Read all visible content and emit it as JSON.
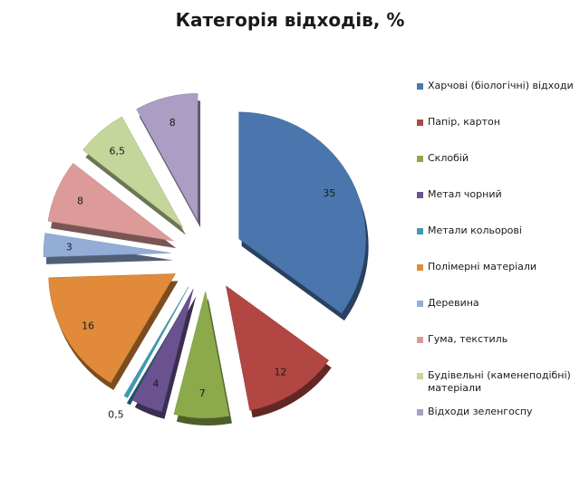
{
  "chart_data": {
    "type": "pie",
    "title": "Категорія відходів, %",
    "categories": [
      "Харчові (біологічні) відходи",
      "Папір, картон",
      "Склобій",
      "Метал чорний",
      "Метали кольорові",
      "Полімерні матеріали",
      "Деревина",
      "Гума, текстиль",
      "Будівельні (каменеподібні) матеріали",
      "Відходи зеленгоспу"
    ],
    "values": [
      35,
      12,
      7,
      4,
      0.5,
      16,
      3,
      8,
      6.5,
      8
    ],
    "value_labels": [
      "35",
      "12",
      "7",
      "4",
      "0,5",
      "16",
      "3",
      "8",
      "6,5",
      "8"
    ],
    "colors": [
      "#4a76ad",
      "#b24643",
      "#8daa4b",
      "#6a5190",
      "#3d9bb4",
      "#e08a3a",
      "#93add6",
      "#dc9b99",
      "#c4d69a",
      "#ab9dc4"
    ],
    "legend_position": "right",
    "exploded": true
  }
}
